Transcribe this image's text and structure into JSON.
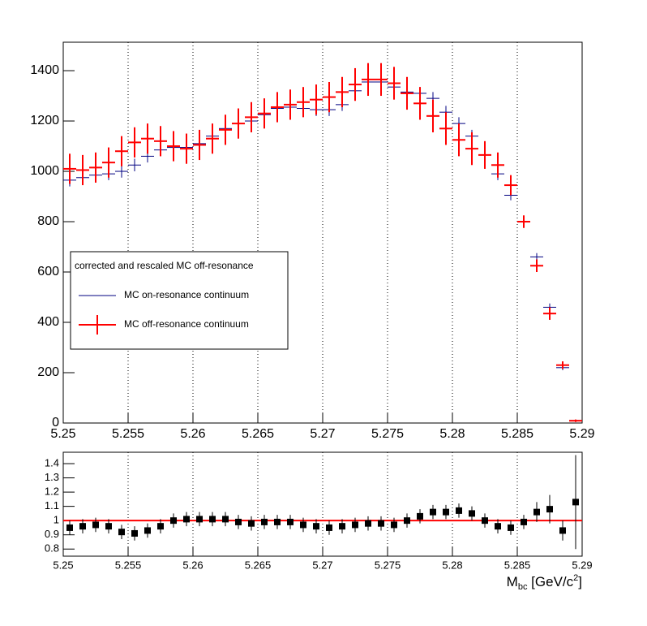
{
  "chart_data": [
    {
      "type": "histogram",
      "bins": [
        5.25,
        5.251,
        5.252,
        5.253,
        5.254,
        5.255,
        5.256,
        5.257,
        5.258,
        5.259,
        5.26,
        5.261,
        5.262,
        5.263,
        5.264,
        5.265,
        5.266,
        5.267,
        5.268,
        5.269,
        5.27,
        5.271,
        5.272,
        5.273,
        5.274,
        5.275,
        5.276,
        5.277,
        5.278,
        5.279,
        5.28,
        5.281,
        5.282,
        5.283,
        5.284,
        5.285,
        5.286,
        5.287,
        5.288,
        5.289,
        5.29
      ],
      "xlim": [
        5.25,
        5.29
      ],
      "xticks": [
        5.25,
        5.255,
        5.26,
        5.265,
        5.27,
        5.275,
        5.28,
        5.285,
        5.29
      ],
      "ylim": [
        0,
        1513
      ],
      "yticks": [
        0,
        200,
        400,
        600,
        800,
        1000,
        1200,
        1400
      ],
      "grid": true,
      "legend_title": "corrected and rescaled MC off-resonance",
      "series": [
        {
          "name": "MC on-resonance continuum",
          "color": "#000080",
          "values": [
            965,
            975,
            985,
            990,
            1000,
            1025,
            1060,
            1085,
            1095,
            1095,
            1110,
            1140,
            1170,
            1190,
            1200,
            1225,
            1250,
            1255,
            1250,
            1245,
            1245,
            1265,
            1320,
            1355,
            1355,
            1335,
            1315,
            1310,
            1290,
            1235,
            1190,
            1140,
            1065,
            990,
            905,
            800,
            660,
            460,
            220,
            10
          ],
          "errors": [
            25,
            25,
            25,
            25,
            25,
            25,
            25,
            25,
            25,
            25,
            25,
            25,
            25,
            25,
            25,
            25,
            25,
            25,
            25,
            25,
            25,
            25,
            25,
            25,
            25,
            25,
            25,
            25,
            25,
            25,
            25,
            25,
            25,
            25,
            20,
            15,
            15,
            15,
            10,
            3
          ]
        },
        {
          "name": "MC off-resonance continuum",
          "color": "#ff0000",
          "values": [
            1010,
            1005,
            1015,
            1035,
            1080,
            1115,
            1130,
            1120,
            1100,
            1090,
            1105,
            1130,
            1165,
            1190,
            1215,
            1230,
            1255,
            1265,
            1275,
            1285,
            1295,
            1315,
            1345,
            1365,
            1365,
            1350,
            1310,
            1270,
            1220,
            1170,
            1125,
            1090,
            1065,
            1025,
            945,
            800,
            625,
            435,
            230,
            9
          ],
          "errors": [
            60,
            60,
            60,
            60,
            60,
            60,
            60,
            60,
            60,
            60,
            60,
            60,
            60,
            60,
            60,
            60,
            60,
            60,
            60,
            60,
            60,
            60,
            65,
            65,
            65,
            65,
            65,
            65,
            65,
            65,
            65,
            65,
            55,
            50,
            40,
            25,
            25,
            25,
            15,
            5
          ]
        }
      ]
    },
    {
      "type": "ratio",
      "x_label": {
        "main": "M",
        "sub": "bc",
        "unit": " [GeV/c",
        "sup": "2",
        "close": "]"
      },
      "xlim": [
        5.25,
        5.29
      ],
      "xticks": [
        5.25,
        5.255,
        5.26,
        5.265,
        5.27,
        5.275,
        5.28,
        5.285,
        5.29
      ],
      "ylim": [
        0.75,
        1.48
      ],
      "yticks": [
        0.8,
        0.9,
        1,
        1.1,
        1.2,
        1.3,
        1.4
      ],
      "grid": true,
      "reference_line": 1,
      "reference_color": "#ff0000",
      "color": "#000000",
      "x": [
        5.2505,
        5.2515,
        5.2525,
        5.2535,
        5.2545,
        5.2555,
        5.2565,
        5.2575,
        5.2585,
        5.2595,
        5.2605,
        5.2615,
        5.2625,
        5.2635,
        5.2645,
        5.2655,
        5.2665,
        5.2675,
        5.2685,
        5.2695,
        5.2705,
        5.2715,
        5.2725,
        5.2735,
        5.2745,
        5.2755,
        5.2765,
        5.2775,
        5.2785,
        5.2795,
        5.2805,
        5.2815,
        5.2825,
        5.2835,
        5.2845,
        5.2855,
        5.2865,
        5.2875,
        5.2885,
        5.2895
      ],
      "values": [
        0.95,
        0.96,
        0.97,
        0.96,
        0.92,
        0.91,
        0.93,
        0.96,
        1.0,
        1.01,
        1.01,
        1.01,
        1.01,
        0.99,
        0.98,
        0.99,
        0.99,
        0.99,
        0.97,
        0.96,
        0.95,
        0.96,
        0.97,
        0.98,
        0.98,
        0.97,
        1.0,
        1.03,
        1.06,
        1.06,
        1.07,
        1.05,
        1.0,
        0.96,
        0.95,
        0.99,
        1.06,
        1.08,
        0.93,
        1.13
      ],
      "errors": [
        0.05,
        0.05,
        0.05,
        0.05,
        0.05,
        0.05,
        0.05,
        0.05,
        0.05,
        0.05,
        0.05,
        0.05,
        0.05,
        0.05,
        0.05,
        0.05,
        0.05,
        0.05,
        0.05,
        0.05,
        0.05,
        0.05,
        0.05,
        0.05,
        0.05,
        0.05,
        0.05,
        0.05,
        0.05,
        0.05,
        0.05,
        0.05,
        0.05,
        0.05,
        0.05,
        0.05,
        0.07,
        0.1,
        0.07,
        0.33
      ]
    }
  ]
}
